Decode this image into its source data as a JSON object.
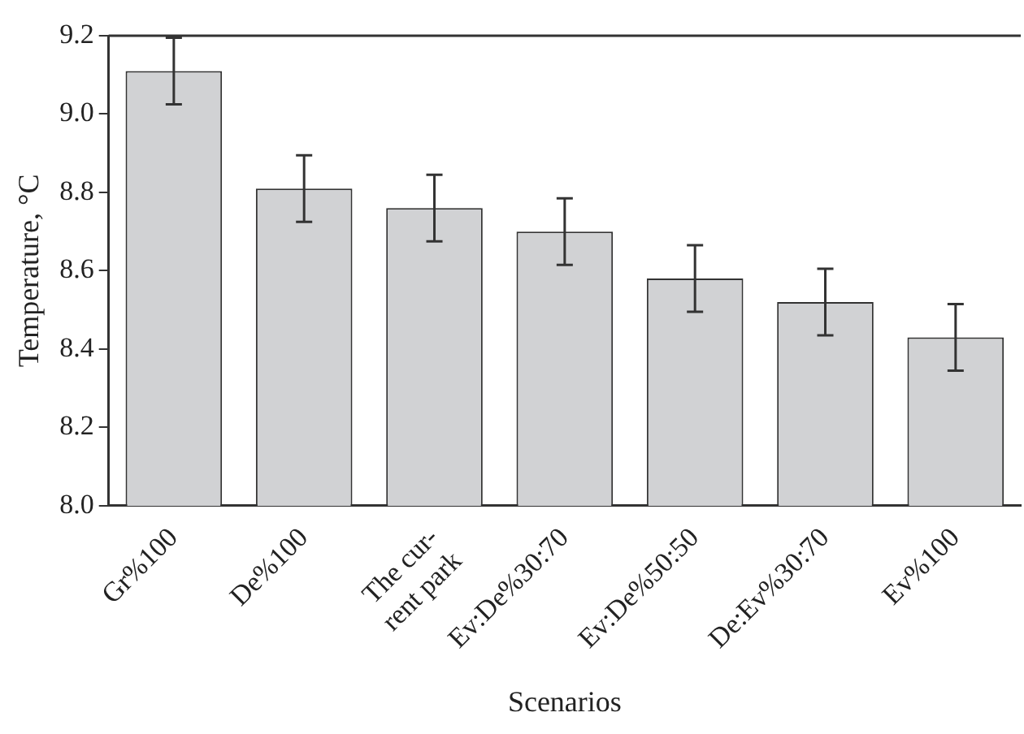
{
  "chart_data": {
    "type": "bar",
    "xlabel": "Scenarios",
    "ylabel": "Temperature, °C",
    "categories": [
      "Gr%100",
      "De%100",
      "The cur-\nrent park",
      "Ev:De%30:70",
      "Ev:De%50:50",
      "De:Ev%30:70",
      "Ev%100"
    ],
    "values": [
      9.11,
      8.81,
      8.76,
      8.7,
      8.58,
      8.52,
      8.43
    ],
    "errors": [
      0.085,
      0.085,
      0.085,
      0.085,
      0.085,
      0.085,
      0.085
    ],
    "color": "#d1d2d4",
    "ylim": [
      8.0,
      9.2
    ],
    "yticks": [
      {
        "value": 8.0,
        "label": "8.0"
      },
      {
        "value": 8.2,
        "label": "8.2"
      },
      {
        "value": 8.4,
        "label": "8.4"
      },
      {
        "value": 8.6,
        "label": "8.6"
      },
      {
        "value": 8.8,
        "label": "8.8"
      },
      {
        "value": 9.0,
        "label": "9.0"
      },
      {
        "value": 9.2,
        "label": "9.2"
      }
    ],
    "grid": false,
    "legend": false
  }
}
